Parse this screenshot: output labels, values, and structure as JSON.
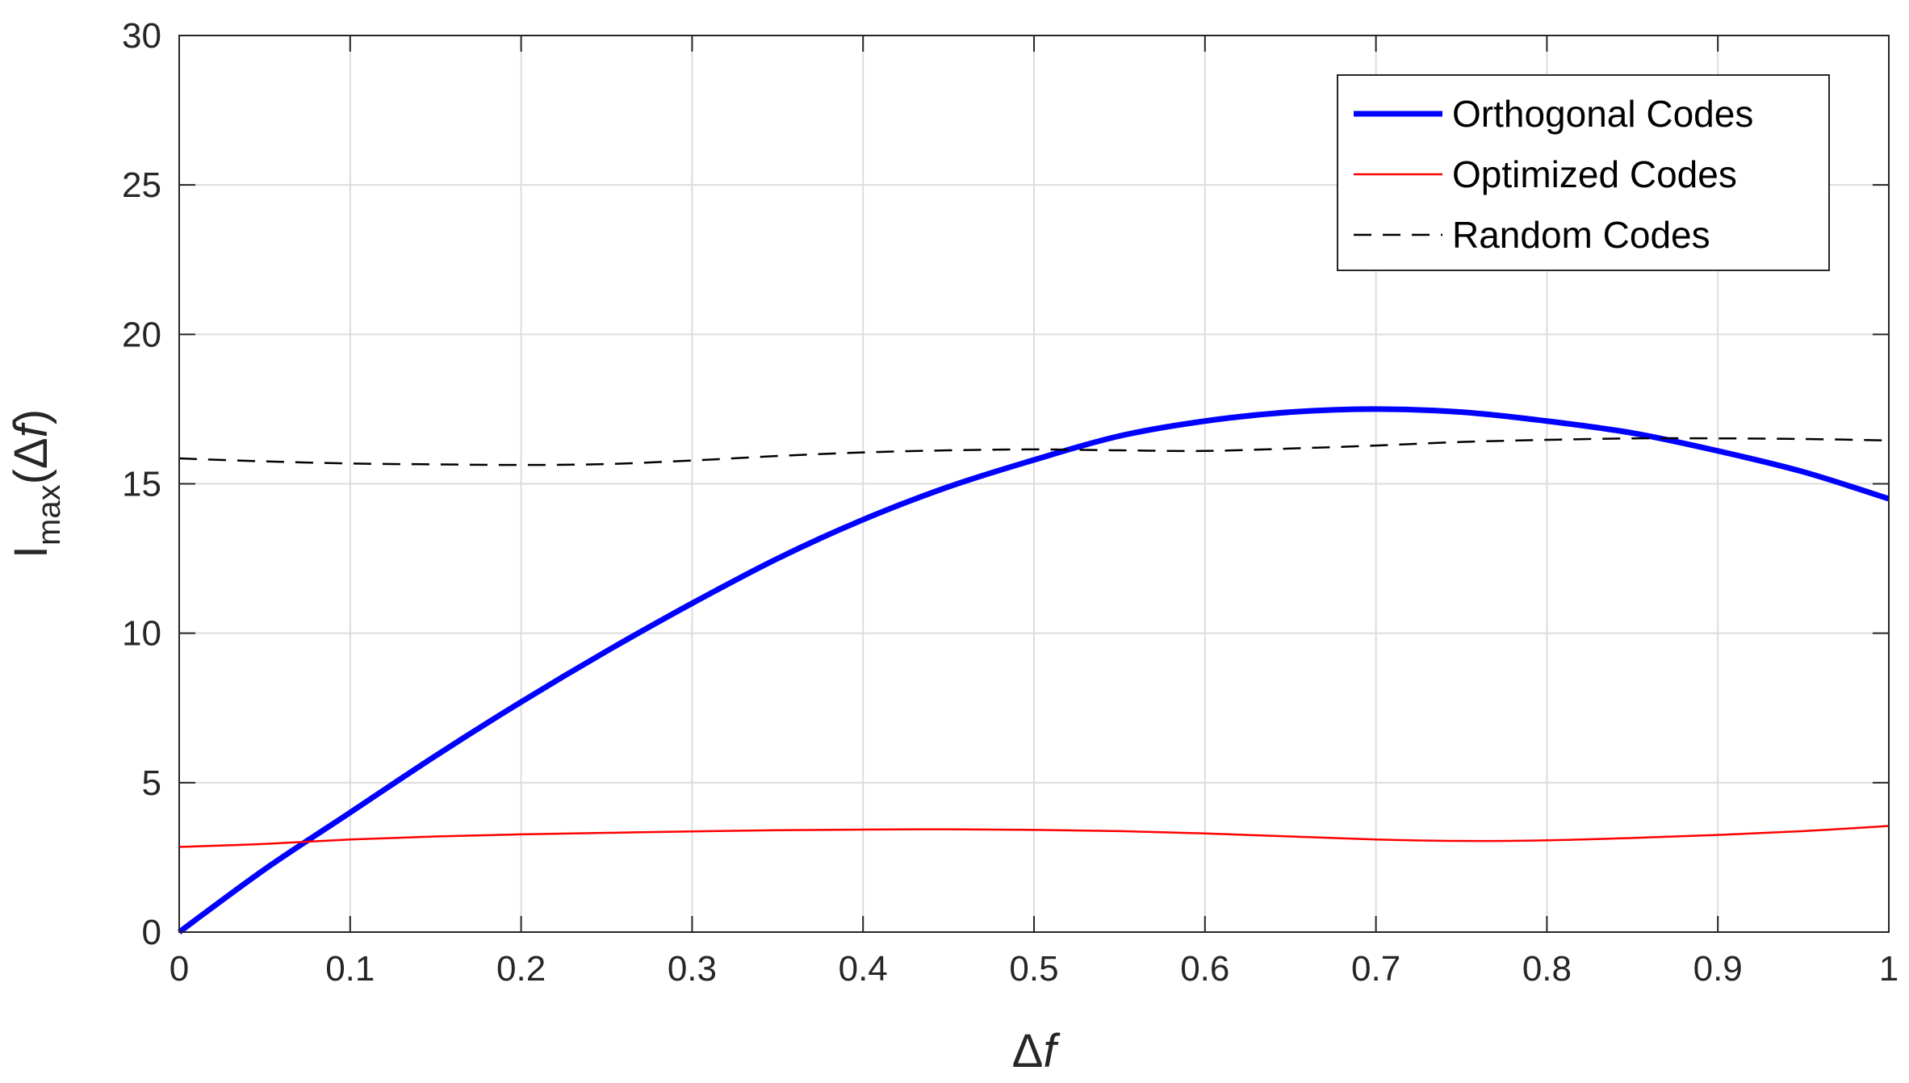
{
  "chart_data": {
    "type": "line",
    "xlabel_symbol": "Δ",
    "xlabel_var": "f",
    "ylabel_main": "I",
    "ylabel_sub": "max",
    "ylabel_arg_open": "(Δ",
    "ylabel_arg_var": "f",
    "ylabel_arg_close": ")",
    "xlim": [
      0,
      1
    ],
    "ylim": [
      0,
      30
    ],
    "x_ticks": [
      0,
      0.1,
      0.2,
      0.3,
      0.4,
      0.5,
      0.6,
      0.7,
      0.8,
      0.9,
      1
    ],
    "x_tick_labels": [
      "0",
      "0.1",
      "0.2",
      "0.3",
      "0.4",
      "0.5",
      "0.6",
      "0.7",
      "0.8",
      "0.9",
      "1"
    ],
    "y_ticks": [
      0,
      5,
      10,
      15,
      20,
      25,
      30
    ],
    "y_tick_labels": [
      "0",
      "5",
      "10",
      "15",
      "20",
      "25",
      "30"
    ],
    "grid": true,
    "legend_position": "top-right",
    "series": [
      {
        "name": "Orthogonal Codes",
        "color": "#0000ff",
        "style": "solid-thick",
        "x": [
          0,
          0.05,
          0.1,
          0.15,
          0.2,
          0.25,
          0.3,
          0.35,
          0.4,
          0.45,
          0.5,
          0.55,
          0.6,
          0.65,
          0.7,
          0.75,
          0.8,
          0.85,
          0.9,
          0.95,
          1.0
        ],
        "y": [
          0,
          2.1,
          4.0,
          5.9,
          7.7,
          9.4,
          11.0,
          12.5,
          13.8,
          14.9,
          15.8,
          16.6,
          17.1,
          17.4,
          17.5,
          17.4,
          17.1,
          16.7,
          16.1,
          15.4,
          14.5
        ]
      },
      {
        "name": "Optimized Codes",
        "color": "#ff0000",
        "style": "solid-thin",
        "x": [
          0,
          0.05,
          0.1,
          0.15,
          0.2,
          0.25,
          0.3,
          0.35,
          0.4,
          0.45,
          0.5,
          0.55,
          0.6,
          0.65,
          0.7,
          0.75,
          0.8,
          0.85,
          0.9,
          0.95,
          1.0
        ],
        "y": [
          2.85,
          2.95,
          3.1,
          3.2,
          3.27,
          3.32,
          3.37,
          3.41,
          3.43,
          3.44,
          3.42,
          3.38,
          3.3,
          3.2,
          3.1,
          3.05,
          3.07,
          3.15,
          3.25,
          3.38,
          3.55
        ]
      },
      {
        "name": "Random Codes",
        "color": "#000000",
        "style": "dashed",
        "x": [
          0,
          0.05,
          0.1,
          0.15,
          0.2,
          0.25,
          0.3,
          0.35,
          0.4,
          0.45,
          0.5,
          0.55,
          0.6,
          0.65,
          0.7,
          0.75,
          0.8,
          0.85,
          0.9,
          0.95,
          1.0
        ],
        "y": [
          15.85,
          15.75,
          15.68,
          15.65,
          15.63,
          15.66,
          15.78,
          15.93,
          16.05,
          16.12,
          16.15,
          16.12,
          16.1,
          16.18,
          16.28,
          16.4,
          16.47,
          16.52,
          16.52,
          16.5,
          16.45
        ]
      }
    ]
  }
}
